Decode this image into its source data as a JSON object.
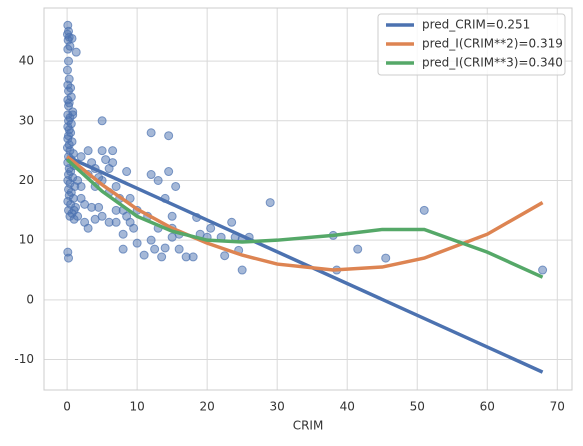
{
  "chart_data": {
    "type": "scatter",
    "xlabel": "CRIM",
    "xlim": [
      -3.3,
      72.1
    ],
    "ylim": [
      -15.1,
      48.9
    ],
    "xticks": [
      0,
      10,
      20,
      30,
      40,
      50,
      60,
      70
    ],
    "yticks": [
      -10,
      0,
      10,
      20,
      30,
      40
    ],
    "grid": true,
    "legend": "upper right",
    "points": {
      "color": "#4c72b0",
      "x": [
        0.1,
        0.2,
        0.05,
        0.3,
        0.7,
        0.15,
        0.4,
        0.1,
        1.3,
        0.2,
        0.05,
        0.3,
        0.1,
        0.5,
        0.2,
        0.6,
        0.1,
        0.3,
        0.8,
        0.2,
        0.8,
        0.1,
        0.4,
        0.2,
        0.6,
        0.1,
        0.3,
        0.5,
        0.2,
        0.1,
        0.7,
        0.3,
        0.05,
        0.4,
        0.9,
        0.2,
        0.6,
        0.1,
        1.0,
        0.3,
        0.5,
        0.2,
        0.8,
        0.1,
        0.4,
        1.1,
        0.2,
        0.6,
        0.3,
        0.9,
        0.1,
        0.5,
        1.2,
        0.2,
        0.7,
        0.4,
        1.0,
        0.1,
        0.2,
        1.5,
        2,
        2,
        2.5,
        3,
        3,
        3.5,
        4,
        4,
        4.5,
        5,
        5,
        5,
        5,
        5.5,
        6,
        6,
        6,
        6.5,
        6.5,
        7,
        7,
        7.5,
        8,
        8,
        8.5,
        8.5,
        9,
        9,
        9.5,
        10,
        10,
        1.5,
        2.5,
        3,
        3.5,
        4,
        1,
        2,
        4.5,
        7,
        8,
        11,
        11.5,
        12,
        12,
        12,
        13,
        13,
        13.5,
        14,
        14.5,
        14.5,
        15,
        15,
        15,
        15.5,
        16,
        16,
        17,
        18,
        18.5,
        19,
        20,
        12.5,
        14,
        20.5,
        22,
        22.5,
        23.5,
        24,
        24.5,
        25,
        25,
        26,
        29,
        38,
        38.5,
        41.5,
        45.5,
        51,
        67.9
      ],
      "values": [
        46,
        45,
        44.5,
        44,
        43.8,
        43.5,
        42.5,
        42,
        41.5,
        40,
        38.5,
        37,
        36,
        35.5,
        35,
        34,
        33.5,
        33,
        31,
        32.5,
        31.5,
        31,
        30.5,
        30,
        29.5,
        29,
        28.5,
        28,
        27.5,
        27,
        26.5,
        26,
        25.5,
        25,
        24.5,
        24,
        23.5,
        23,
        22.5,
        22,
        21.5,
        21,
        20.5,
        20,
        19.5,
        19,
        18.5,
        18,
        17.5,
        17,
        16.5,
        16,
        15.5,
        15,
        14.5,
        14,
        13.5,
        8,
        7,
        20,
        24,
        19,
        16,
        25,
        21,
        23,
        22,
        19,
        20.5,
        30,
        25,
        20,
        14,
        23.5,
        22,
        18,
        13,
        25,
        23,
        19,
        15,
        17,
        11,
        8.5,
        21.5,
        14,
        13,
        17,
        12,
        9.5,
        15,
        14,
        13,
        12,
        15.5,
        13.5,
        15,
        17,
        15.5,
        13,
        15,
        7.5,
        14,
        28,
        10,
        21,
        20,
        12,
        7.2,
        17,
        27.5,
        21.5,
        10.5,
        14,
        12,
        19,
        8.5,
        11,
        7.2,
        7.2,
        13.8,
        11,
        10.5,
        8.5,
        8.7,
        12,
        10.5,
        7.4,
        13,
        10.5,
        8.3,
        5,
        10.2,
        10.5,
        16.3,
        10.8,
        5,
        8.5,
        7,
        15,
        5
      ]
    },
    "series": [
      {
        "name": "pred_CRIM=0.251",
        "color": "#4c72b0",
        "x": [
          0.006,
          67.9
        ],
        "values": [
          24.0,
          -12.1
        ]
      },
      {
        "name": "pred_I(CRIM**2)=0.319",
        "color": "#dd8452",
        "x": [
          0.006,
          5,
          10,
          15,
          20,
          25,
          30,
          38,
          45,
          51,
          60,
          67.9
        ],
        "values": [
          24.0,
          19.3,
          15.2,
          12.0,
          9.5,
          7.5,
          6.0,
          5.0,
          5.5,
          7.0,
          11.0,
          16.3
        ]
      },
      {
        "name": "pred_I(CRIM**3)=0.340",
        "color": "#55a868",
        "x": [
          0.006,
          5,
          10,
          15,
          20,
          25,
          30,
          38,
          45,
          51,
          60,
          67.9
        ],
        "values": [
          23.5,
          18.2,
          14.0,
          11.5,
          10.0,
          9.7,
          10.0,
          10.8,
          11.8,
          11.8,
          8.0,
          3.8
        ]
      }
    ]
  }
}
